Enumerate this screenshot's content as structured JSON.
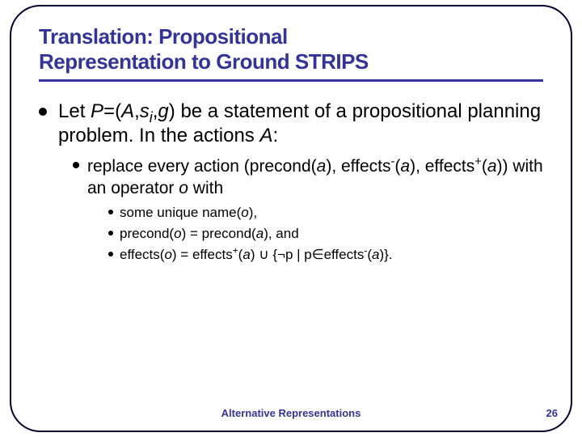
{
  "colors": {
    "accent": "#333399",
    "text": "#000000",
    "background": "#ffffff",
    "frame_border": "#000033"
  },
  "typography": {
    "title_fontsize": 26,
    "title_weight": 900,
    "lvl1_fontsize": 24,
    "lvl2_fontsize": 21,
    "lvl3_fontsize": 17,
    "footer_fontsize": 13
  },
  "title": {
    "line1": "Translation: Propositional",
    "line2": "Representation to Ground STRIPS"
  },
  "body": {
    "lvl1_prefix": "Let ",
    "lvl1_P": "P",
    "lvl1_eq": "=(",
    "lvl1_A": "A",
    "lvl1_comma1": ",",
    "lvl1_s": "s",
    "lvl1_i": "i",
    "lvl1_comma2": ",",
    "lvl1_g": "g",
    "lvl1_tail": ") be a statement of a propositional planning problem. In the actions ",
    "lvl1_A2": "A",
    "lvl1_colon": ":",
    "lvl2_a": "replace every action (precond(",
    "lvl2_a_var": "a",
    "lvl2_b": "), effects",
    "lvl2_minus": "-",
    "lvl2_c": "(",
    "lvl2_a_var2": "a",
    "lvl2_d": "), effects",
    "lvl2_plus": "+",
    "lvl2_e": "(",
    "lvl2_a_var3": "a",
    "lvl2_f": ")) with an operator ",
    "lvl2_o": "o",
    "lvl2_g": " with",
    "lvl3_1_a": "some unique name(",
    "lvl3_1_o": "o",
    "lvl3_1_b": "),",
    "lvl3_2_a": "precond(",
    "lvl3_2_o": "o",
    "lvl3_2_b": ") = precond(",
    "lvl3_2_av": "a",
    "lvl3_2_c": "), and",
    "lvl3_3_a": "effects(",
    "lvl3_3_o": "o",
    "lvl3_3_b": ") = effects",
    "lvl3_3_plus": "+",
    "lvl3_3_c": "(",
    "lvl3_3_av": "a",
    "lvl3_3_d": ") ∪ {¬p | p",
    "lvl3_3_in": "∈",
    "lvl3_3_e": "effects",
    "lvl3_3_minus": "-",
    "lvl3_3_f": "(",
    "lvl3_3_av2": "a",
    "lvl3_3_g": ")}."
  },
  "footer": {
    "center": "Alternative Representations",
    "page": "26"
  }
}
